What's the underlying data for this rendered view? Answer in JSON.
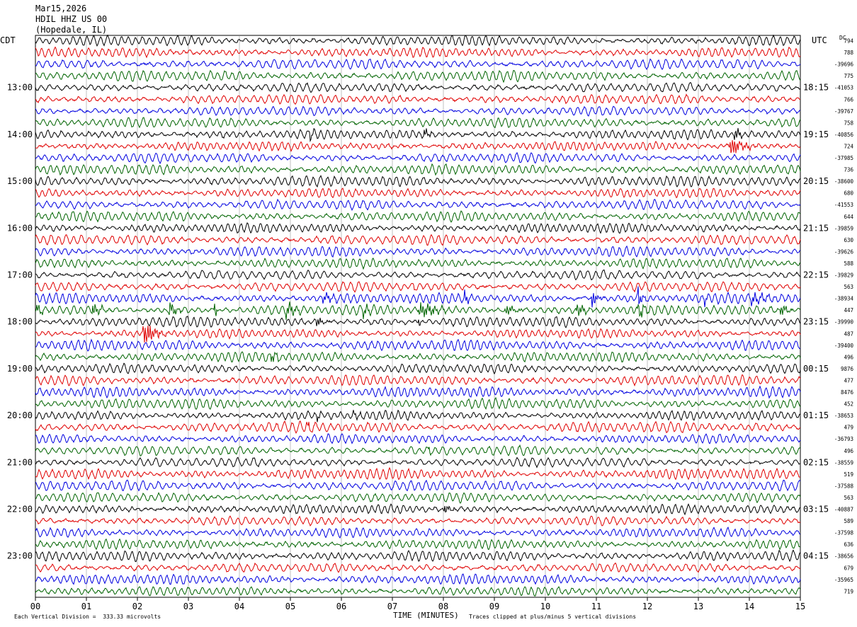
{
  "header": {
    "date": "Mar15,2026",
    "station": "HDIL HHZ US 00",
    "location": "(Hopedale, IL)"
  },
  "left_tz": "CDT",
  "right_tz": "UTC",
  "dc_label": "DC",
  "footer": {
    "scale": "Each Vertical Division =  333.33 microvolts",
    "xlabel": "TIME (MINUTES)",
    "clip_note": "Traces clipped at plus/minus 5 vertical divisions"
  },
  "chart_data": {
    "type": "line",
    "title": "Mar15,2026 HDIL HHZ US 00 (Hopedale, IL)",
    "xlabel": "TIME (MINUTES)",
    "ylabel_left": "CDT",
    "ylabel_right": "UTC",
    "xlim": [
      0,
      15
    ],
    "x_ticks": [
      "00",
      "01",
      "02",
      "03",
      "04",
      "05",
      "06",
      "07",
      "08",
      "09",
      "10",
      "11",
      "12",
      "13",
      "14",
      "15"
    ],
    "trace_count": 48,
    "trace_colors": [
      "#000000",
      "#e00000",
      "#0000e0",
      "#006400"
    ],
    "left_hour_labels": [
      "13:00",
      "14:00",
      "15:00",
      "16:00",
      "17:00",
      "18:00",
      "19:00",
      "20:00",
      "21:00",
      "22:00",
      "23:00"
    ],
    "right_hour_labels": [
      "18:15",
      "19:15",
      "20:15",
      "21:15",
      "22:15",
      "23:15",
      "00:15",
      "01:15",
      "02:15",
      "03:15",
      "04:15"
    ],
    "hour_label_first_trace": 4,
    "traces_per_hour": 4,
    "dc_offsets": [
      "794",
      "788",
      "-39696",
      "775",
      "-41053",
      "766",
      "-39767",
      "758",
      "-40856",
      "724",
      "-37985",
      "736",
      "-38600",
      "680",
      "-41553",
      "644",
      "-39859",
      "630",
      "-39626",
      "588",
      "-39829",
      "563",
      "-38934",
      "447",
      "-39990",
      "487",
      "-39400",
      "496",
      "9876",
      "477",
      "8476",
      "452",
      "-38653",
      "479",
      "-36793",
      "496",
      "-38559",
      "519",
      "-37588",
      "563",
      "-40887",
      "589",
      "-37598",
      "636",
      "-38656",
      "679",
      "-35965",
      "719"
    ],
    "events": [
      {
        "trace": 8,
        "start_min": 5.35,
        "end_min": 5.5,
        "amplitude": 12
      },
      {
        "trace": 8,
        "start_min": 7.6,
        "end_min": 7.9,
        "amplitude": 7
      },
      {
        "trace": 9,
        "start_min": 13.6,
        "end_min": 14.2,
        "amplitude": 14
      },
      {
        "trace": 8,
        "start_min": 13.7,
        "end_min": 14.0,
        "amplitude": 10
      },
      {
        "trace": 23,
        "start_min": 0.0,
        "end_min": 0.3,
        "amplitude": 8
      },
      {
        "trace": 23,
        "start_min": 1.1,
        "end_min": 1.5,
        "amplitude": 9
      },
      {
        "trace": 23,
        "start_min": 2.6,
        "end_min": 3.0,
        "amplitude": 10
      },
      {
        "trace": 23,
        "start_min": 3.5,
        "end_min": 3.6,
        "amplitude": 22
      },
      {
        "trace": 23,
        "start_min": 4.9,
        "end_min": 5.4,
        "amplitude": 10
      },
      {
        "trace": 23,
        "start_min": 6.4,
        "end_min": 6.8,
        "amplitude": 8
      },
      {
        "trace": 23,
        "start_min": 7.5,
        "end_min": 8.3,
        "amplitude": 11
      },
      {
        "trace": 23,
        "start_min": 9.2,
        "end_min": 9.6,
        "amplitude": 8
      },
      {
        "trace": 23,
        "start_min": 10.6,
        "end_min": 11.0,
        "amplitude": 9
      },
      {
        "trace": 23,
        "start_min": 11.8,
        "end_min": 12.2,
        "amplitude": 10
      },
      {
        "trace": 23,
        "start_min": 14.6,
        "end_min": 14.9,
        "amplitude": 9
      },
      {
        "trace": 22,
        "start_min": 5.6,
        "end_min": 6.3,
        "amplitude": 6
      },
      {
        "trace": 22,
        "start_min": 8.4,
        "end_min": 8.6,
        "amplitude": 12
      },
      {
        "trace": 22,
        "start_min": 10.9,
        "end_min": 11.2,
        "amplitude": 12
      },
      {
        "trace": 22,
        "start_min": 11.8,
        "end_min": 12.0,
        "amplitude": 16
      },
      {
        "trace": 22,
        "start_min": 13.1,
        "end_min": 13.2,
        "amplitude": 14
      },
      {
        "trace": 22,
        "start_min": 14.0,
        "end_min": 14.9,
        "amplitude": 7
      },
      {
        "trace": 21,
        "start_min": 7.4,
        "end_min": 7.5,
        "amplitude": 7
      },
      {
        "trace": 24,
        "start_min": 7.5,
        "end_min": 7.6,
        "amplitude": 8
      },
      {
        "trace": 24,
        "start_min": 5.5,
        "end_min": 5.8,
        "amplitude": 8
      },
      {
        "trace": 25,
        "start_min": 2.1,
        "end_min": 2.7,
        "amplitude": 18
      },
      {
        "trace": 27,
        "start_min": 4.6,
        "end_min": 4.9,
        "amplitude": 10
      },
      {
        "trace": 32,
        "start_min": 5.5,
        "end_min": 5.7,
        "amplitude": 7
      },
      {
        "trace": 32,
        "start_min": 6.2,
        "end_min": 6.5,
        "amplitude": 6
      },
      {
        "trace": 33,
        "start_min": 5.3,
        "end_min": 5.6,
        "amplitude": 6
      },
      {
        "trace": 35,
        "start_min": 7.7,
        "end_min": 7.8,
        "amplitude": 9
      },
      {
        "trace": 40,
        "start_min": 8.0,
        "end_min": 8.5,
        "amplitude": 5
      }
    ]
  }
}
